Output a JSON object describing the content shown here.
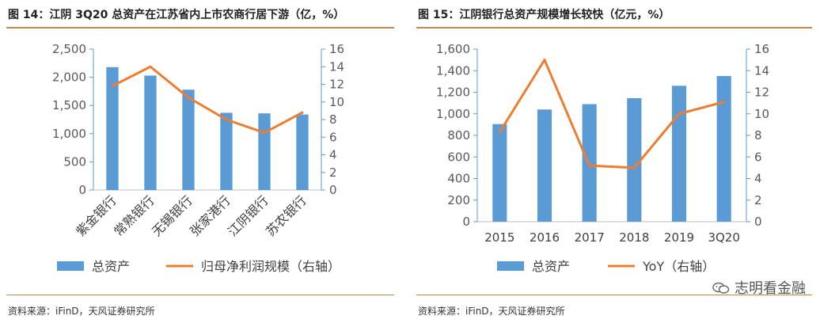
{
  "figures": [
    {
      "title": "图 14：江阴 3Q20 总资产在江苏省内上市农商行居下游（亿，%）",
      "source": "资料来源：iFinD，天风证券研究所"
    },
    {
      "title": "图 15：江阴银行总资产规模增长较快（亿元，%）",
      "source": "资料来源：iFinD，天风证券研究所"
    }
  ],
  "watermark": {
    "icon": "wechat-icon",
    "text": "志明看金融"
  },
  "colors": {
    "bar": "#5b9bd5",
    "line": "#ed7d31",
    "axis": "#5b9bd5",
    "rule": "#c28a4a"
  },
  "chart_data": [
    {
      "type": "bar",
      "categories": [
        "紫金银行",
        "常熟银行",
        "无锡银行",
        "张家港行",
        "江阴银行",
        "苏农银行"
      ],
      "series": [
        {
          "name": "总资产",
          "type": "bar",
          "axis": "left",
          "values": [
            2180,
            2030,
            1780,
            1370,
            1360,
            1340
          ]
        },
        {
          "name": "归母净利润规模（右轴）",
          "type": "line",
          "axis": "right",
          "values": [
            11.8,
            14.0,
            10.5,
            8.0,
            6.5,
            8.8
          ]
        }
      ],
      "ylim_left": [
        0,
        2500
      ],
      "yticks_left": [
        "0",
        "500",
        "1,000",
        "1,500",
        "2,000",
        "2,500"
      ],
      "ylim_right": [
        0,
        16
      ],
      "yticks_right": [
        "0",
        "2",
        "4",
        "6",
        "8",
        "10",
        "12",
        "14",
        "16"
      ],
      "legend": "bottom",
      "grid": false
    },
    {
      "type": "bar",
      "categories": [
        "2015",
        "2016",
        "2017",
        "2018",
        "2019",
        "3Q20"
      ],
      "series": [
        {
          "name": "总资产",
          "type": "bar",
          "axis": "left",
          "values": [
            905,
            1040,
            1090,
            1145,
            1260,
            1350
          ]
        },
        {
          "name": "YoY（右轴）",
          "type": "line",
          "axis": "right",
          "values": [
            8.3,
            15.0,
            5.2,
            5.0,
            10.0,
            11.1
          ]
        }
      ],
      "ylim_left": [
        0,
        1600
      ],
      "yticks_left": [
        "0",
        "200",
        "400",
        "600",
        "800",
        "1,000",
        "1,200",
        "1,400",
        "1,600"
      ],
      "ylim_right": [
        0,
        16
      ],
      "yticks_right": [
        "0",
        "2",
        "4",
        "6",
        "8",
        "10",
        "12",
        "14",
        "16"
      ],
      "legend": "bottom",
      "grid": false
    }
  ]
}
